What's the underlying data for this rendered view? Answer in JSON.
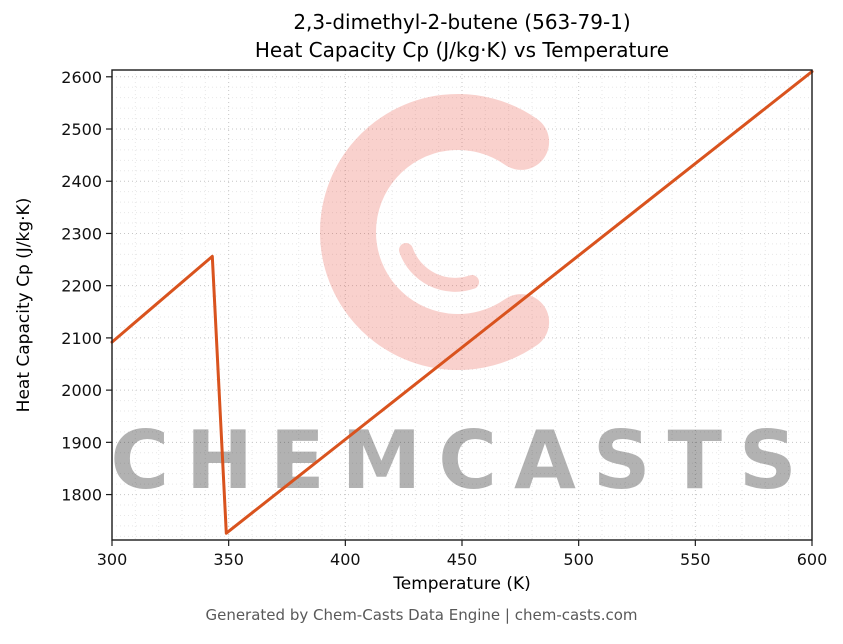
{
  "chart_data": {
    "type": "line",
    "title_line1": "2,3-dimethyl-2-butene (563-79-1)",
    "title_line2": "Heat Capacity Cp (J/kg·K) vs Temperature",
    "xlabel": "Temperature (K)",
    "ylabel": "Heat Capacity Cp (J/kg·K)",
    "xlim": [
      300,
      600
    ],
    "ylim": [
      1713,
      2613
    ],
    "xticks": [
      300,
      350,
      400,
      450,
      500,
      550,
      600
    ],
    "yticks": [
      1800,
      1900,
      2000,
      2100,
      2200,
      2300,
      2400,
      2500,
      2600
    ],
    "minor_x_step": 10,
    "minor_y_step": 20,
    "grid": true,
    "legend": "none",
    "line_color": "#d9531e",
    "line_width": 3,
    "series": [
      {
        "name": "Heat Capacity Cp",
        "points": [
          [
            300,
            2092
          ],
          [
            343,
            2256
          ],
          [
            349,
            1726
          ],
          [
            600,
            2610
          ]
        ]
      }
    ],
    "watermark": {
      "text": "CHEMCASTS",
      "logo": "c-swirl-logo",
      "color": "#e74c3c",
      "text_opacity": 0.32,
      "logo_opacity": 0.26
    }
  },
  "footer": "Generated by Chem-Casts Data Engine | chem-casts.com"
}
